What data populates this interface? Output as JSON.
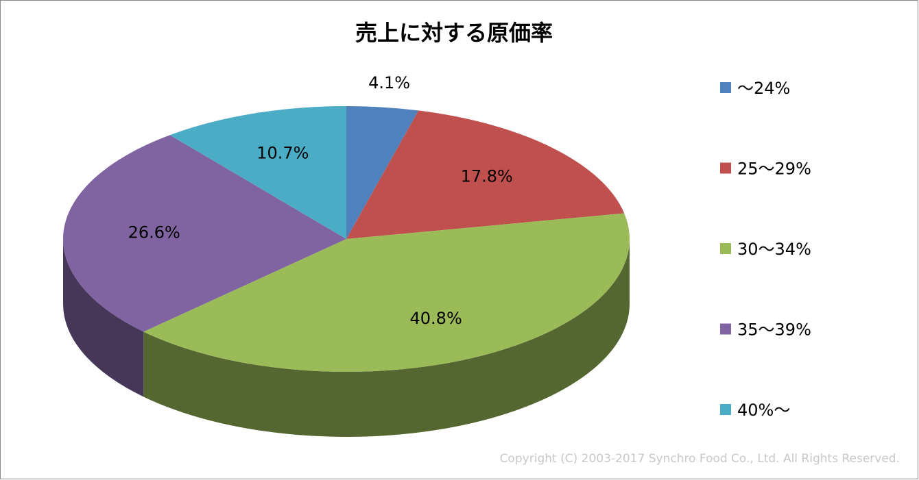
{
  "chart_data": {
    "type": "pie",
    "title": "売上に対する原価率",
    "categories": [
      "～24%",
      "25～29%",
      "30～34%",
      "35～39%",
      "40%～"
    ],
    "values": [
      4.1,
      17.8,
      40.8,
      26.6,
      10.7
    ],
    "value_labels": [
      "4.1%",
      "17.8%",
      "40.8%",
      "26.6%",
      "10.7%"
    ],
    "colors": [
      "#4f81bd",
      "#c0504d",
      "#9bbb59",
      "#8064a2",
      "#4bacc6"
    ],
    "legend": "right",
    "footnote": "Copyright (C) 2003-2017  Synchro Food Co., Ltd. All Rights Reserved."
  }
}
